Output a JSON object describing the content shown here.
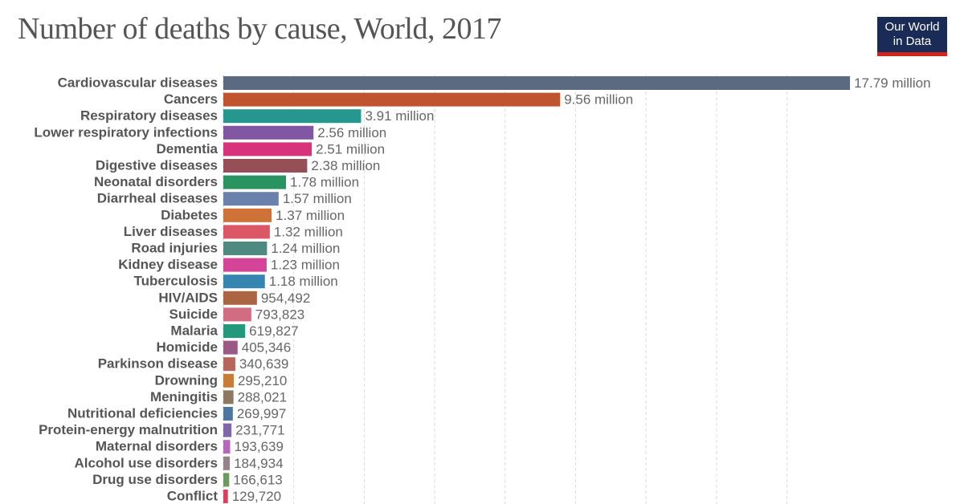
{
  "header": {
    "title": "Number of deaths by cause, World, 2017",
    "logo_line1": "Our World",
    "logo_line2": "in Data"
  },
  "chart_data": {
    "type": "bar",
    "orientation": "horizontal",
    "title": "Number of deaths by cause, World, 2017",
    "xlabel": "",
    "ylabel": "",
    "xlim": [
      0,
      18000000
    ],
    "grid": "vertical dashed, every 2 million",
    "categories": [
      "Cardiovascular diseases",
      "Cancers",
      "Respiratory diseases",
      "Lower respiratory infections",
      "Dementia",
      "Digestive diseases",
      "Neonatal disorders",
      "Diarrheal diseases",
      "Diabetes",
      "Liver diseases",
      "Road injuries",
      "Kidney disease",
      "Tuberculosis",
      "HIV/AIDS",
      "Suicide",
      "Malaria",
      "Homicide",
      "Parkinson disease",
      "Drowning",
      "Meningitis",
      "Nutritional deficiencies",
      "Protein-energy malnutrition",
      "Maternal disorders",
      "Alcohol use disorders",
      "Drug use disorders",
      "Conflict"
    ],
    "values": [
      17790000,
      9560000,
      3910000,
      2560000,
      2510000,
      2380000,
      1780000,
      1570000,
      1370000,
      1320000,
      1240000,
      1230000,
      1180000,
      954492,
      793823,
      619827,
      405346,
      340639,
      295210,
      288021,
      269997,
      231771,
      193639,
      184934,
      166613,
      129720
    ],
    "value_labels": [
      "17.79 million",
      "9.56 million",
      "3.91 million",
      "2.56 million",
      "2.51 million",
      "2.38 million",
      "1.78 million",
      "1.57 million",
      "1.37 million",
      "1.32 million",
      "1.24 million",
      "1.23 million",
      "1.18 million",
      "954,492",
      "793,823",
      "619,827",
      "405,346",
      "340,639",
      "295,210",
      "288,021",
      "269,997",
      "231,771",
      "193,639",
      "184,934",
      "166,613",
      "129,720"
    ],
    "colors": [
      "#5b6a80",
      "#c0542e",
      "#26978e",
      "#8157a3",
      "#d7337c",
      "#964f56",
      "#2a9460",
      "#6a81ab",
      "#cf7237",
      "#db5766",
      "#4e8a7f",
      "#d44499",
      "#3585b0",
      "#ac6542",
      "#d26c83",
      "#23987a",
      "#9a5a85",
      "#b4665a",
      "#c97c37",
      "#8d7862",
      "#4b77a1",
      "#8067a6",
      "#b667b9",
      "#948388",
      "#6d9a5e",
      "#d9405b"
    ]
  }
}
